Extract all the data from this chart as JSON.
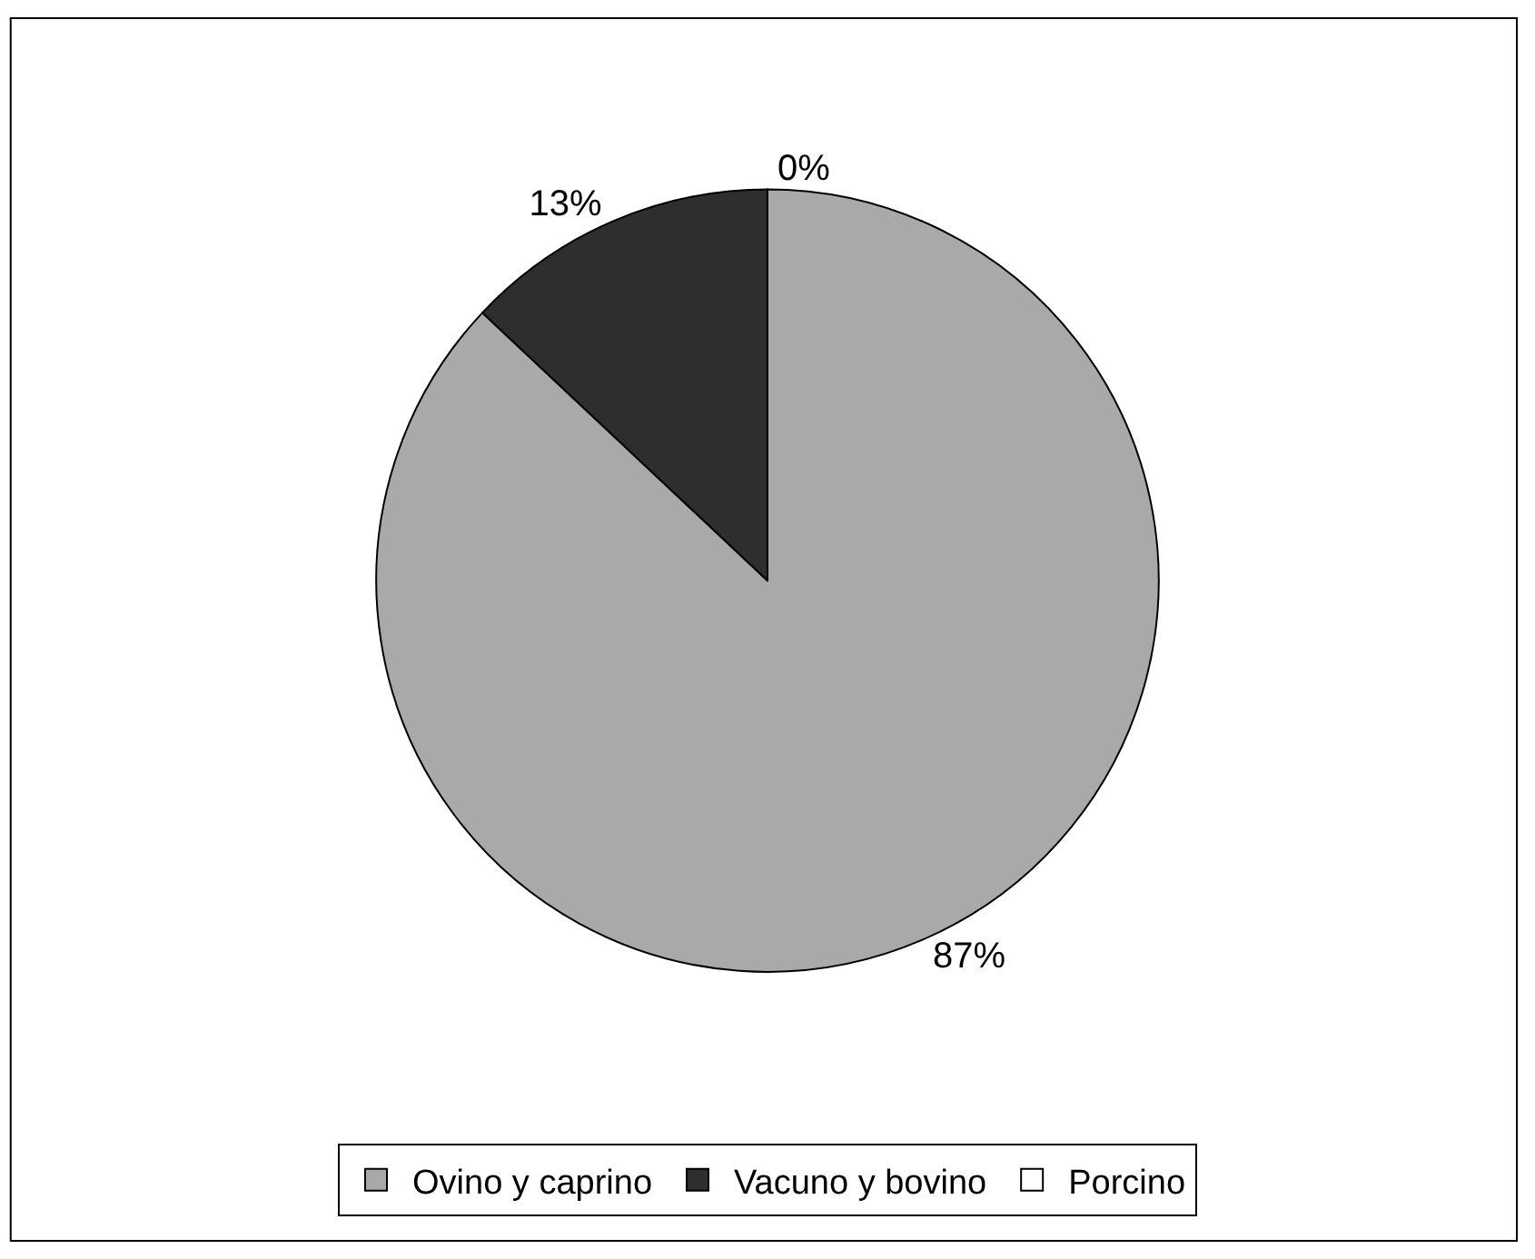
{
  "chart_data": {
    "type": "pie",
    "categories": [
      "Ovino y caprino",
      "Vacuno y bovino",
      "Porcino"
    ],
    "values": [
      87,
      13,
      0
    ],
    "colors": [
      "#a9a9a9",
      "#2e2e2e",
      "#ffffff"
    ],
    "value_labels": [
      "87%",
      "13%",
      "0%"
    ],
    "legend": "bottom"
  }
}
